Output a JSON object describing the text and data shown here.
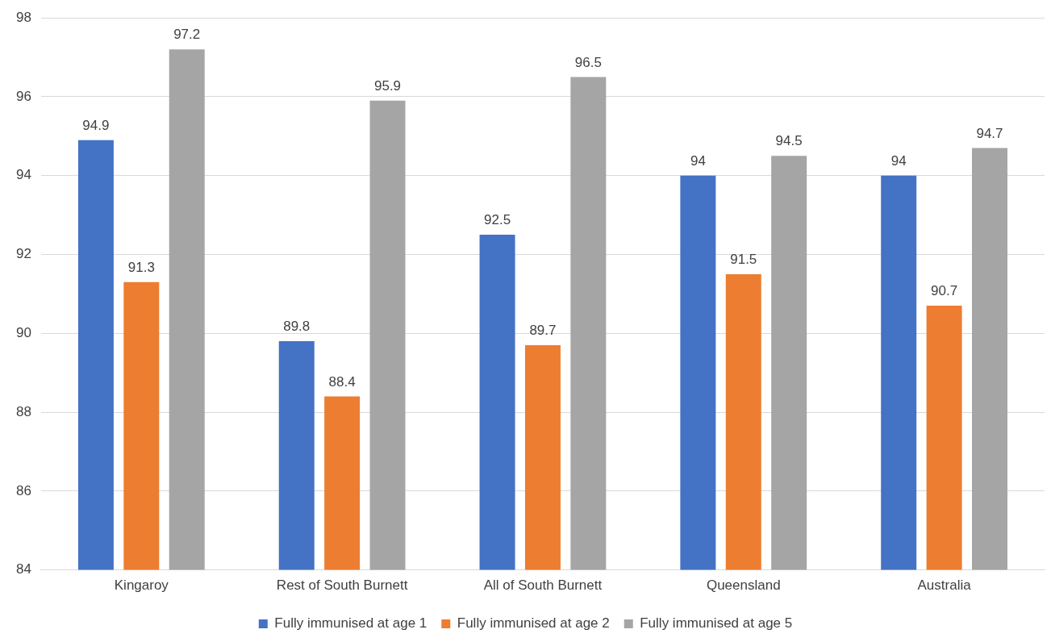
{
  "chart_data": {
    "type": "bar",
    "categories": [
      "Kingaroy",
      "Rest of South Burnett",
      "All of South Burnett",
      "Queensland",
      "Australia"
    ],
    "series": [
      {
        "name": "Fully immunised at age 1",
        "color": "#4472c4",
        "values": [
          94.9,
          89.8,
          92.5,
          94,
          94
        ]
      },
      {
        "name": "Fully immunised at age 2",
        "color": "#ed7d31",
        "values": [
          91.3,
          88.4,
          89.7,
          91.5,
          90.7
        ]
      },
      {
        "name": "Fully immunised at age 5",
        "color": "#a5a5a5",
        "values": [
          97.2,
          95.9,
          96.5,
          94.5,
          94.7
        ]
      }
    ],
    "ylim": [
      84,
      98
    ],
    "yticks": [
      84,
      86,
      88,
      90,
      92,
      94,
      96,
      98
    ],
    "grid": "y",
    "legend": "bottom",
    "data_labels": true
  }
}
